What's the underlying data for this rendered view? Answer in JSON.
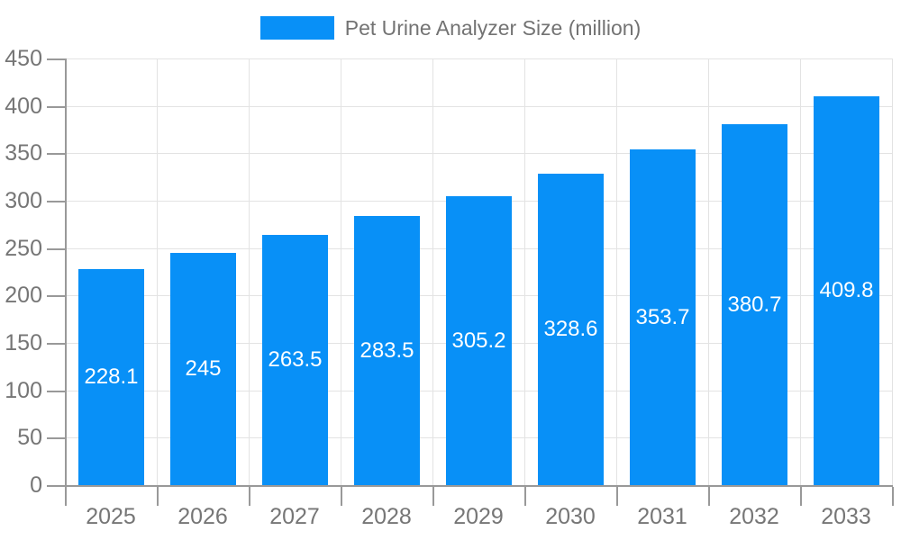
{
  "legend": {
    "label": "Pet Urine Analyzer Size (million)"
  },
  "colors": {
    "bar": "#0890F7",
    "axis": "#999999",
    "grid": "#E3E3E3",
    "tick_label": "#767676",
    "legend_text": "#737373",
    "bar_label": "#FFFFFF",
    "background": "#FFFFFF"
  },
  "chart_data": {
    "type": "bar",
    "title": "Pet Urine Analyzer Size (million)",
    "categories": [
      "2025",
      "2026",
      "2027",
      "2028",
      "2029",
      "2030",
      "2031",
      "2032",
      "2033"
    ],
    "values": [
      228.1,
      245,
      263.5,
      283.5,
      305.2,
      328.6,
      353.7,
      380.7,
      409.8
    ],
    "value_labels": [
      "228.1",
      "245",
      "263.5",
      "283.5",
      "305.2",
      "328.6",
      "353.7",
      "380.7",
      "409.8"
    ],
    "series_name": "Pet Urine Analyzer Size (million)",
    "xlabel": "",
    "ylabel": "",
    "ylim": [
      0,
      450
    ],
    "yticks": [
      0,
      50,
      100,
      150,
      200,
      250,
      300,
      350,
      400,
      450
    ],
    "grid": true,
    "legend_position": "top-center",
    "bar_label_position": "inside-center"
  }
}
